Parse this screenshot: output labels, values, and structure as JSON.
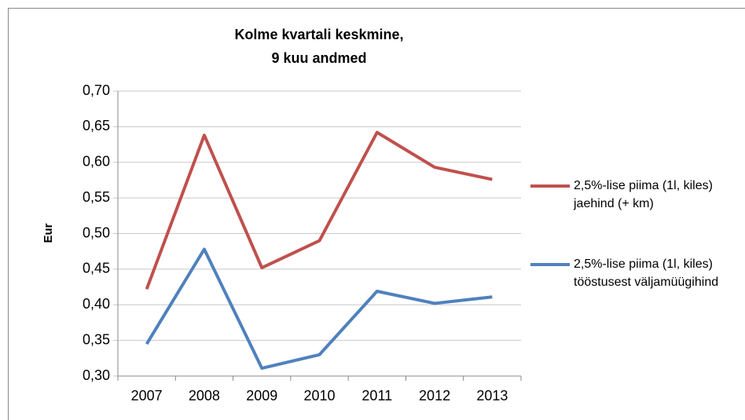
{
  "chart_data": {
    "type": "line",
    "title": [
      "Kolme kvartali keskmine,",
      "9 kuu andmed"
    ],
    "y_label": "Eur",
    "categories": [
      "2007",
      "2008",
      "2009",
      "2010",
      "2011",
      "2012",
      "2013"
    ],
    "series": [
      {
        "name": "2,5%-lise piima (1l, kiles) jaehind (+ km)",
        "color": "#c0504d",
        "values": [
          0.422,
          0.638,
          0.452,
          0.49,
          0.642,
          0.593,
          0.576
        ]
      },
      {
        "name": "2,5%-lise piima (1l, kiles) tööstusest väljamüügihind",
        "color": "#4f81bd",
        "values": [
          0.345,
          0.478,
          0.311,
          0.33,
          0.419,
          0.402,
          0.411
        ]
      }
    ],
    "ylim": [
      0.3,
      0.7
    ],
    "yticks": [
      {
        "value": 0.3,
        "label": "0,30"
      },
      {
        "value": 0.35,
        "label": "0,35"
      },
      {
        "value": 0.4,
        "label": "0,40"
      },
      {
        "value": 0.45,
        "label": "0,45"
      },
      {
        "value": 0.5,
        "label": "0,50"
      },
      {
        "value": 0.55,
        "label": "0,55"
      },
      {
        "value": 0.6,
        "label": "0,60"
      },
      {
        "value": 0.65,
        "label": "0,65"
      },
      {
        "value": 0.7,
        "label": "0,70"
      }
    ],
    "grid": true,
    "legend": "right"
  }
}
